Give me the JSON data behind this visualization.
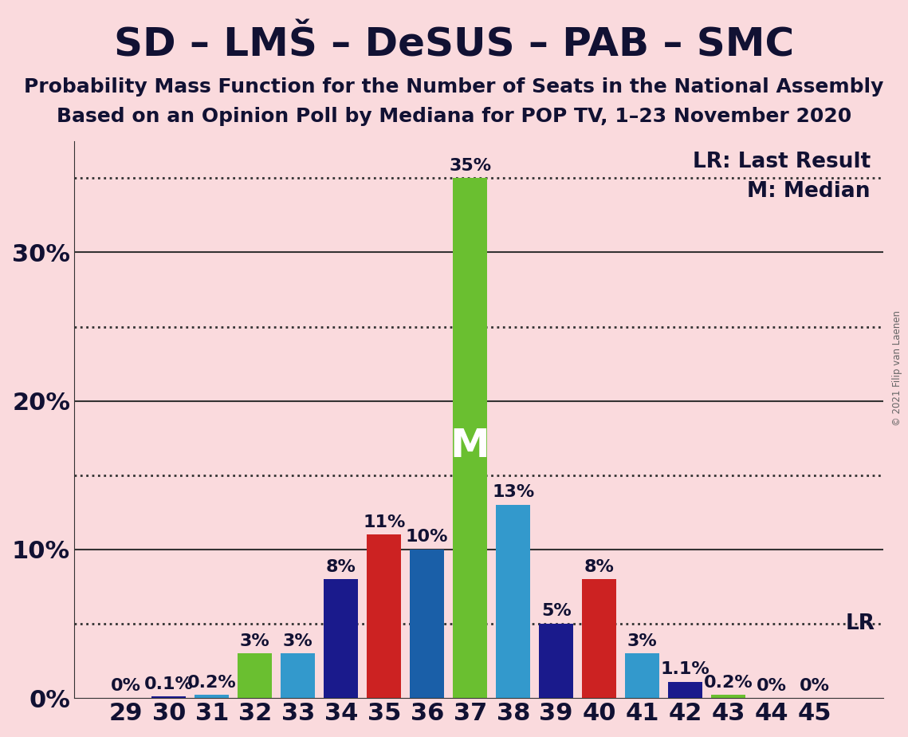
{
  "title": "SD – LMŠ – DeSUS – PAB – SMC",
  "subtitle1": "Probability Mass Function for the Number of Seats in the National Assembly",
  "subtitle2": "Based on an Opinion Poll by Mediana for POP TV, 1–23 November 2020",
  "copyright": "© 2021 Filip van Laenen",
  "background_color": "#FADADD",
  "seats": [
    29,
    30,
    31,
    32,
    33,
    34,
    35,
    36,
    37,
    38,
    39,
    40,
    41,
    42,
    43,
    44,
    45
  ],
  "values": [
    0.0,
    0.1,
    0.2,
    3.0,
    3.0,
    8.0,
    11.0,
    10.0,
    35.0,
    13.0,
    5.0,
    8.0,
    3.0,
    1.1,
    0.2,
    0.0,
    0.0
  ],
  "bar_colors": [
    "#1a1a8c",
    "#1a1a8c",
    "#3399cc",
    "#6abf30",
    "#3399cc",
    "#1a1a8c",
    "#cc2222",
    "#1a5fa8",
    "#6abf30",
    "#3399cc",
    "#1a1a8c",
    "#cc2222",
    "#3399cc",
    "#1a1a8c",
    "#6abf30",
    "#1a1a8c",
    "#3399cc"
  ],
  "median_seat": 37,
  "lr_value": 5.0,
  "solid_gridlines": [
    10,
    20,
    30
  ],
  "dotted_gridlines": [
    5,
    15,
    25,
    35
  ],
  "ytick_positions": [
    0,
    10,
    20,
    30
  ],
  "ytick_labels": [
    "0%",
    "10%",
    "20%",
    "30%"
  ],
  "ymax": 37.5,
  "title_fontsize": 36,
  "subtitle_fontsize": 18,
  "axis_fontsize": 22,
  "bar_label_fontsize": 16,
  "legend_fontsize": 19,
  "lr_legend": "LR: Last Result",
  "m_legend": "M: Median",
  "text_color": "#111133",
  "grid_color": "#333333"
}
